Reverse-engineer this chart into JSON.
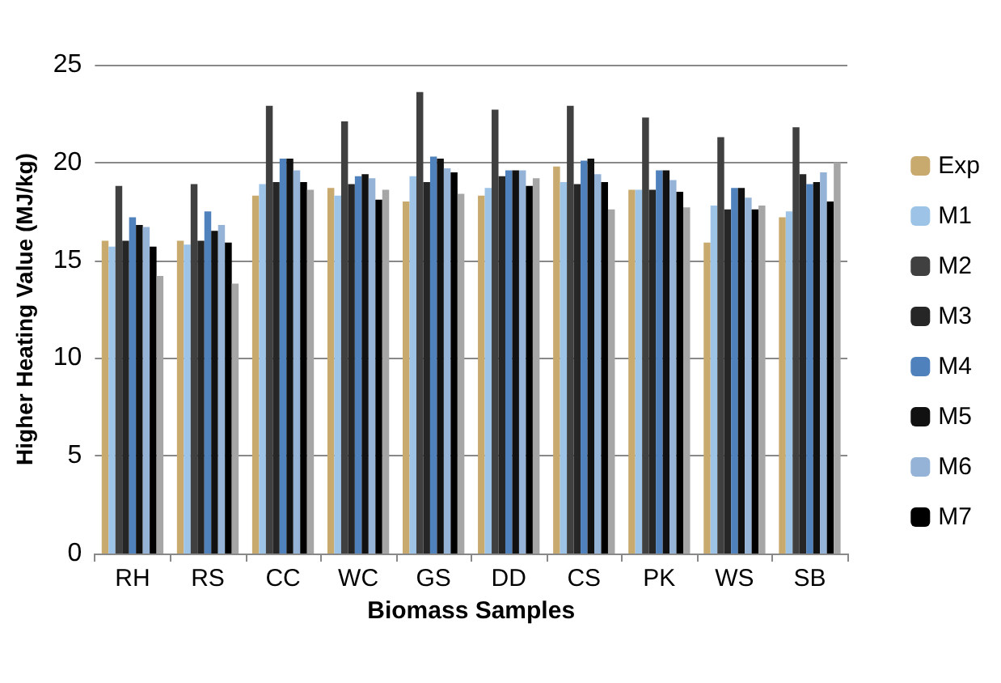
{
  "chart_data": {
    "type": "bar",
    "xlabel": "Biomass Samples",
    "ylabel": "Higher Heating Value (MJ/kg)",
    "categories": [
      "RH",
      "RS",
      "CC",
      "WC",
      "GS",
      "DD",
      "CS",
      "PK",
      "WS",
      "SB"
    ],
    "series": [
      {
        "name": "Exp",
        "color": "#c8a96e",
        "values": [
          16,
          16,
          18.3,
          18.7,
          18,
          18.3,
          19.8,
          18.6,
          15.9,
          17.2
        ]
      },
      {
        "name": "M1",
        "color": "#9dc3e6",
        "values": [
          15.7,
          15.8,
          18.9,
          18.3,
          19.3,
          18.7,
          19,
          18.6,
          17.8,
          17.5
        ]
      },
      {
        "name": "M2",
        "color": "#404040",
        "values": [
          18.8,
          18.9,
          22.9,
          22.1,
          23.6,
          22.7,
          22.9,
          22.3,
          21.3,
          21.8
        ]
      },
      {
        "name": "M3",
        "color": "#262626",
        "values": [
          16,
          16,
          19,
          18.9,
          19,
          19.3,
          18.9,
          18.6,
          17.6,
          19.4
        ]
      },
      {
        "name": "M4",
        "color": "#4f81bd",
        "values": [
          17.2,
          17.5,
          20.2,
          19.3,
          20.3,
          19.6,
          20.1,
          19.6,
          18.7,
          18.9
        ]
      },
      {
        "name": "M5",
        "color": "#111111",
        "values": [
          16.8,
          16.5,
          20.2,
          19.4,
          20.2,
          19.6,
          20.2,
          19.6,
          18.7,
          19
        ]
      },
      {
        "name": "M6",
        "color": "#95b3d7",
        "values": [
          16.7,
          16.8,
          19.6,
          19.2,
          19.7,
          19.6,
          19.4,
          19.1,
          18.2,
          19.5
        ]
      },
      {
        "name": "M7",
        "color": "#000000",
        "values": [
          15.7,
          15.9,
          19,
          18.1,
          19.5,
          18.8,
          19,
          18.5,
          17.6,
          18
        ]
      },
      {
        "color": "#a6a6a6",
        "values": [
          14.2,
          13.8,
          18.6,
          18.6,
          18.4,
          19.2,
          17.6,
          17.7,
          17.8,
          20
        ]
      }
    ],
    "ylim": [
      0,
      25
    ],
    "yticks": [
      0,
      5,
      10,
      15,
      20,
      25
    ],
    "grid": "y",
    "legend": "right"
  }
}
